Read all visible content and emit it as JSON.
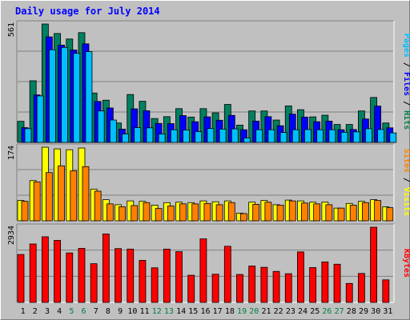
{
  "chart_data": {
    "type": "bar",
    "title": "Daily usage for July 2014",
    "categories": [
      "1",
      "2",
      "3",
      "4",
      "5",
      "6",
      "7",
      "8",
      "9",
      "10",
      "11",
      "12",
      "13",
      "14",
      "15",
      "16",
      "17",
      "18",
      "19",
      "20",
      "21",
      "22",
      "23",
      "24",
      "25",
      "26",
      "27",
      "28",
      "29",
      "30",
      "31"
    ],
    "weekend_days": [
      "5",
      "6",
      "12",
      "13",
      "19",
      "20",
      "26",
      "27"
    ],
    "right_label_upper": {
      "parts": [
        {
          "text": "Pages",
          "color": "#00c0ff"
        },
        {
          "text": " / ",
          "color": "#000000"
        },
        {
          "text": "Files",
          "color": "#0000ff"
        },
        {
          "text": " / ",
          "color": "#000000"
        },
        {
          "text": "Hits",
          "color": "#008040"
        }
      ]
    },
    "right_label_middle": {
      "parts": [
        {
          "text": "Sites",
          "color": "#ff8000"
        },
        {
          "text": " / ",
          "color": "#000000"
        },
        {
          "text": "Visits",
          "color": "#ffff00"
        }
      ]
    },
    "right_label_lower": {
      "parts": [
        {
          "text": "KBytes",
          "color": "#ff0000"
        }
      ]
    },
    "panels": [
      {
        "max_label": "561",
        "ylim": [
          0,
          561
        ],
        "series": [
          {
            "name": "Hits",
            "color": "#008060",
            "values": [
              100,
              292,
              561,
              516,
              490,
              520,
              234,
              200,
              92,
              227,
              195,
              113,
              122,
              160,
              120,
              160,
              140,
              180,
              82,
              149,
              149,
              106,
              173,
              155,
              121,
              129,
              85,
              85,
              149,
              213,
              92
            ]
          },
          {
            "name": "Files",
            "color": "#0000ff",
            "values": [
              70,
              225,
              500,
              461,
              438,
              467,
              194,
              163,
              63,
              159,
              150,
              90,
              89,
              127,
              98,
              121,
              105,
              128,
              60,
              101,
              122,
              79,
              134,
              120,
              98,
              101,
              60,
              61,
              111,
              172,
              69
            ]
          },
          {
            "name": "Pages",
            "color": "#00c0ff",
            "values": [
              65,
              220,
              439,
              450,
              422,
              430,
              149,
              106,
              40,
              70,
              69,
              40,
              60,
              59,
              51,
              66,
              63,
              64,
              21,
              60,
              60,
              47,
              60,
              61,
              60,
              60,
              48,
              50,
              65,
              61,
              45
            ]
          }
        ]
      },
      {
        "max_label": "174",
        "ylim": [
          0,
          174
        ],
        "series": [
          {
            "name": "Visits",
            "color": "#ffff00",
            "values": [
              48,
              95,
              174,
              170,
              168,
              172,
              75,
              50,
              38,
              47,
              46,
              37,
              43,
              44,
              43,
              47,
              45,
              47,
              18,
              44,
              48,
              38,
              49,
              47,
              44,
              44,
              30,
              41,
              46,
              50,
              33
            ]
          },
          {
            "name": "Sites",
            "color": "#ff8000",
            "values": [
              46,
              92,
              114,
              130,
              118,
              128,
              70,
              40,
              33,
              36,
              43,
              29,
              35,
              40,
              40,
              41,
              38,
              43,
              17,
              39,
              44,
              37,
              47,
              42,
              40,
              38,
              30,
              37,
              43,
              48,
              31
            ]
          }
        ]
      },
      {
        "max_label": "2934",
        "ylim": [
          0,
          2934
        ],
        "series": [
          {
            "name": "KBytes",
            "color": "#ff0000",
            "values": [
              1870,
              2280,
              2560,
              2420,
              1930,
              2110,
              1510,
              2670,
              2100,
              2080,
              1640,
              1350,
              2080,
              1980,
              1060,
              2480,
              1100,
              2190,
              1090,
              1420,
              1370,
              1210,
              1120,
              1970,
              1360,
              1580,
              1490,
              740,
              1130,
              2934,
              880
            ]
          }
        ]
      }
    ]
  }
}
